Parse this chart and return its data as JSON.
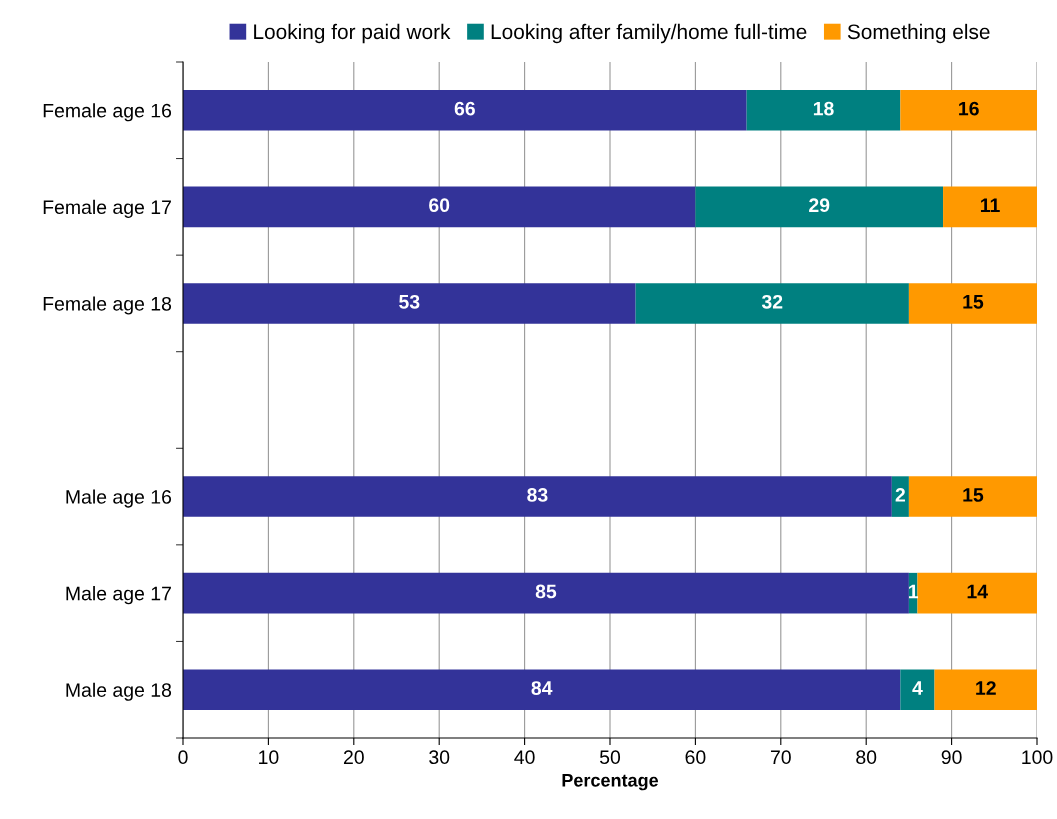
{
  "chart_data": {
    "type": "bar",
    "orientation": "horizontal",
    "stacked": true,
    "data_labels": true,
    "grid": "x",
    "legend": "top",
    "xlabel": "Percentage",
    "categories": [
      "Female age 16",
      "Female age 17",
      "Female age 18",
      null,
      "Male age 16",
      "Male age 17",
      "Male age 18"
    ],
    "series": [
      {
        "name": "Looking for paid work",
        "color": "#333399",
        "values": [
          66,
          60,
          53,
          null,
          83,
          85,
          84
        ]
      },
      {
        "name": "Looking after family/home full-time",
        "color": "#008080",
        "values": [
          18,
          29,
          32,
          null,
          2,
          1,
          4
        ]
      },
      {
        "name": "Something else",
        "color": "#ff9900",
        "values": [
          16,
          11,
          15,
          null,
          15,
          14,
          12
        ]
      }
    ],
    "xlim": [
      0,
      100
    ],
    "xticks": [
      0,
      10,
      20,
      30,
      40,
      50,
      60,
      70,
      80,
      90,
      100
    ]
  }
}
